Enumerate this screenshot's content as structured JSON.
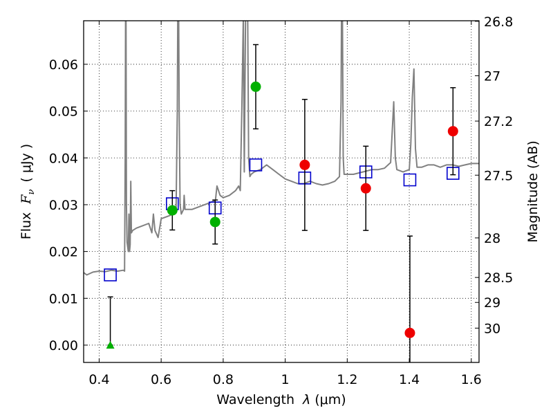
{
  "chart_data": {
    "type": "scatter",
    "xlabel_text": "Wavelength",
    "xlabel_lambda": "λ",
    "xlabel_unit": "(μm)",
    "ylabel_text": "Flux",
    "ylabel_symbol": "F",
    "ylabel_sub": "ν",
    "ylabel_unit": "( μJy )",
    "y2label": "Magnitude (AB)",
    "xlim": [
      0.35,
      1.625
    ],
    "ylim": [
      -0.0037,
      0.0693
    ],
    "grid": true,
    "x_ticks": [
      0.4,
      0.6,
      0.8,
      1.0,
      1.2,
      1.4,
      1.6
    ],
    "x_tick_labels": [
      "0.4",
      "0.6",
      "0.8",
      "1",
      "1.2",
      "1.4",
      "1.6"
    ],
    "y_ticks": [
      0.0,
      0.01,
      0.02,
      0.03,
      0.04,
      0.05,
      0.06
    ],
    "y_tick_labels": [
      "0.00",
      "0.01",
      "0.02",
      "0.03",
      "0.04",
      "0.05",
      "0.06"
    ],
    "mag_ticks": [
      26.8,
      27,
      27.2,
      27.5,
      28,
      28.5,
      29,
      30
    ],
    "mag_tick_labels": [
      "26.8",
      "27",
      "27.2",
      "27.5",
      "28",
      "28.5",
      "29",
      "30"
    ],
    "colors": {
      "sed": "#808080",
      "model_marker": "#0000cc",
      "green": "#00b000",
      "red": "#ee0000",
      "errorbar": "#000000"
    },
    "sed_model": {
      "name": "",
      "points": [
        [
          0.35,
          0.0155
        ],
        [
          0.36,
          0.015
        ],
        [
          0.38,
          0.0156
        ],
        [
          0.4,
          0.0158
        ],
        [
          0.42,
          0.0157
        ],
        [
          0.44,
          0.016
        ],
        [
          0.46,
          0.0158
        ],
        [
          0.478,
          0.016
        ],
        [
          0.482,
          0.0158
        ],
        [
          0.484,
          0.04
        ],
        [
          0.486,
          0.09
        ],
        [
          0.488,
          0.03
        ],
        [
          0.49,
          0.022
        ],
        [
          0.494,
          0.02
        ],
        [
          0.496,
          0.028
        ],
        [
          0.498,
          0.02
        ],
        [
          0.5,
          0.0215
        ],
        [
          0.502,
          0.035
        ],
        [
          0.504,
          0.024
        ],
        [
          0.508,
          0.0245
        ],
        [
          0.52,
          0.025
        ],
        [
          0.54,
          0.0255
        ],
        [
          0.56,
          0.026
        ],
        [
          0.57,
          0.024
        ],
        [
          0.575,
          0.028
        ],
        [
          0.58,
          0.0245
        ],
        [
          0.59,
          0.023
        ],
        [
          0.6,
          0.027
        ],
        [
          0.62,
          0.0275
        ],
        [
          0.64,
          0.028
        ],
        [
          0.648,
          0.0285
        ],
        [
          0.652,
          0.05
        ],
        [
          0.655,
          0.09
        ],
        [
          0.658,
          0.05
        ],
        [
          0.661,
          0.03
        ],
        [
          0.665,
          0.028
        ],
        [
          0.672,
          0.029
        ],
        [
          0.674,
          0.032
        ],
        [
          0.677,
          0.029
        ],
        [
          0.7,
          0.029
        ],
        [
          0.72,
          0.0295
        ],
        [
          0.74,
          0.03
        ],
        [
          0.76,
          0.0305
        ],
        [
          0.775,
          0.031
        ],
        [
          0.78,
          0.034
        ],
        [
          0.79,
          0.032
        ],
        [
          0.8,
          0.0315
        ],
        [
          0.82,
          0.032
        ],
        [
          0.84,
          0.033
        ],
        [
          0.85,
          0.034
        ],
        [
          0.855,
          0.033
        ],
        [
          0.86,
          0.05
        ],
        [
          0.865,
          0.07
        ],
        [
          0.868,
          0.037
        ],
        [
          0.872,
          0.07
        ],
        [
          0.878,
          0.08
        ],
        [
          0.882,
          0.04
        ],
        [
          0.886,
          0.036
        ],
        [
          0.89,
          0.0365
        ],
        [
          0.9,
          0.037
        ],
        [
          0.92,
          0.0375
        ],
        [
          0.94,
          0.0385
        ],
        [
          0.96,
          0.0375
        ],
        [
          0.98,
          0.0365
        ],
        [
          1.0,
          0.0355
        ],
        [
          1.02,
          0.035
        ],
        [
          1.04,
          0.0345
        ],
        [
          1.06,
          0.0345
        ],
        [
          1.08,
          0.035
        ],
        [
          1.1,
          0.0345
        ],
        [
          1.12,
          0.0342
        ],
        [
          1.14,
          0.0345
        ],
        [
          1.16,
          0.035
        ],
        [
          1.175,
          0.036
        ],
        [
          1.18,
          0.052
        ],
        [
          1.183,
          0.09
        ],
        [
          1.187,
          0.04
        ],
        [
          1.19,
          0.0365
        ],
        [
          1.22,
          0.0365
        ],
        [
          1.25,
          0.037
        ],
        [
          1.28,
          0.0375
        ],
        [
          1.3,
          0.0375
        ],
        [
          1.32,
          0.0378
        ],
        [
          1.34,
          0.039
        ],
        [
          1.35,
          0.052
        ],
        [
          1.355,
          0.04
        ],
        [
          1.36,
          0.0375
        ],
        [
          1.38,
          0.037
        ],
        [
          1.4,
          0.0375
        ],
        [
          1.405,
          0.043
        ],
        [
          1.41,
          0.053
        ],
        [
          1.415,
          0.059
        ],
        [
          1.42,
          0.042
        ],
        [
          1.425,
          0.038
        ],
        [
          1.44,
          0.038
        ],
        [
          1.46,
          0.0385
        ],
        [
          1.48,
          0.0385
        ],
        [
          1.5,
          0.038
        ],
        [
          1.52,
          0.0385
        ],
        [
          1.54,
          0.0385
        ],
        [
          1.56,
          0.0382
        ],
        [
          1.58,
          0.0385
        ],
        [
          1.6,
          0.0388
        ],
        [
          1.625,
          0.0388
        ]
      ]
    },
    "model_photometry": {
      "name": "",
      "marker": "open-square",
      "x": [
        0.436,
        0.636,
        0.774,
        0.905,
        1.063,
        1.26,
        1.402,
        1.541
      ],
      "y": [
        0.015,
        0.0302,
        0.0293,
        0.0385,
        0.0357,
        0.037,
        0.0353,
        0.0367
      ]
    },
    "observed_green": {
      "name": "",
      "marker": "circle",
      "x": [
        0.636,
        0.774,
        0.905
      ],
      "y": [
        0.0288,
        0.0263,
        0.0552
      ],
      "err": [
        0.0042,
        0.0047,
        0.009
      ]
    },
    "observed_green_limit": {
      "name": "",
      "marker": "triangle",
      "x": [
        0.436
      ],
      "y": [
        0.0
      ],
      "err_upper": [
        0.0103
      ]
    },
    "observed_red": {
      "name": "",
      "marker": "circle",
      "x": [
        1.063,
        1.26,
        1.402,
        1.541
      ],
      "y": [
        0.0385,
        0.0335,
        0.0026,
        0.0457
      ],
      "err": [
        0.014,
        0.009,
        0.0207,
        0.0093
      ]
    }
  }
}
